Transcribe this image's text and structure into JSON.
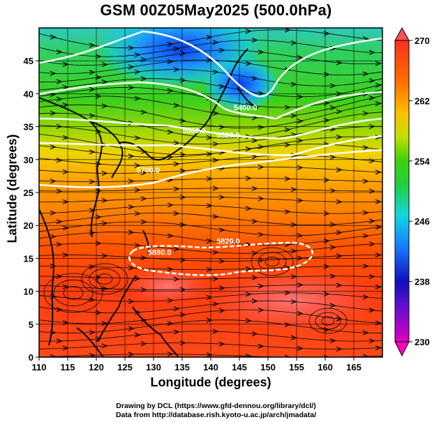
{
  "title": "GSM 00Z05May2025 (500.0hPa)",
  "map_data": {
    "type": "heatmap-streamlines-contours",
    "xlabel": "Longitude (degrees)",
    "ylabel": "Latitude  (degrees)",
    "xlim": [
      110,
      170
    ],
    "ylim": [
      0,
      50
    ],
    "xticks": [
      110,
      115,
      120,
      125,
      130,
      135,
      140,
      145,
      150,
      155,
      160,
      165
    ],
    "yticks": [
      0,
      5,
      10,
      15,
      20,
      25,
      30,
      35,
      40,
      45
    ],
    "grid": true,
    "colorbar": {
      "min": 230,
      "max": 270,
      "ticks": [
        230,
        238,
        246,
        254,
        262,
        270
      ],
      "colors": [
        "#d800c8",
        "#1818d0",
        "#19a0ff",
        "#10e0d0",
        "#30d010",
        "#c8e000",
        "#ffc000",
        "#ff5a00",
        "#ff3020"
      ]
    },
    "contours": [
      {
        "label": "5880.0",
        "lon": 129,
        "lat": 15.5
      },
      {
        "label": "5700.0",
        "lon": 127,
        "lat": 28
      },
      {
        "label": "5520.0",
        "lon": 141,
        "lat": 33.3
      },
      {
        "label": "5400.0",
        "lon": 144,
        "lat": 37.5
      },
      {
        "label": "5580.0",
        "lon": 135,
        "lat": 34
      },
      {
        "label": "5820.0",
        "lon": 141,
        "lat": 17.2
      }
    ]
  },
  "credits": {
    "line1": "Drawing by DCL (https://www.gfd-dennou.org/library/dcl/)",
    "line2": "Data from http://database.rish.kyoto-u.ac.jp/arch/jmadata/"
  }
}
